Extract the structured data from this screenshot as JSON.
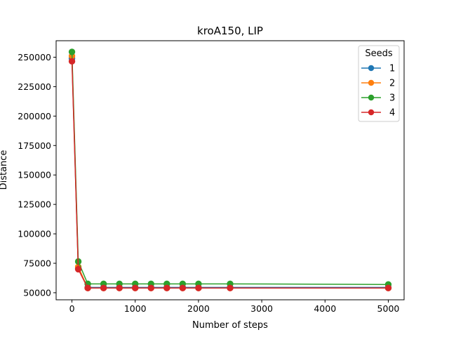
{
  "chart_data": {
    "type": "line",
    "title": "kroA150, LIP",
    "xlabel": "Number of steps",
    "ylabel": "Distance",
    "xlim": [
      -250,
      5250
    ],
    "ylim": [
      44000,
      264000
    ],
    "xticks": [
      0,
      1000,
      2000,
      3000,
      4000,
      5000
    ],
    "yticks": [
      50000,
      75000,
      100000,
      125000,
      150000,
      175000,
      200000,
      225000,
      250000
    ],
    "grid": false,
    "legend": {
      "title": "Seeds",
      "placement": "top-right"
    },
    "x": [
      0,
      100,
      250,
      500,
      750,
      1000,
      1250,
      1500,
      1750,
      2000,
      2500,
      5000
    ],
    "series": [
      {
        "name": "1",
        "color": "#1f77b4",
        "values": [
          249000,
          70500,
          54500,
          54500,
          54500,
          54500,
          54500,
          54500,
          54500,
          54500,
          54500,
          54500
        ]
      },
      {
        "name": "2",
        "color": "#ff7f0e",
        "values": [
          251000,
          72000,
          54000,
          54000,
          54000,
          54000,
          54000,
          54000,
          54000,
          54000,
          54000,
          54000
        ]
      },
      {
        "name": "3",
        "color": "#2ca02c",
        "values": [
          254500,
          76500,
          57500,
          57500,
          57500,
          57500,
          57500,
          57500,
          57500,
          57500,
          57500,
          57000
        ]
      },
      {
        "name": "4",
        "color": "#d62728",
        "values": [
          246500,
          70000,
          54000,
          54000,
          54000,
          54000,
          54000,
          54000,
          54000,
          54000,
          54000,
          54000
        ]
      }
    ]
  }
}
